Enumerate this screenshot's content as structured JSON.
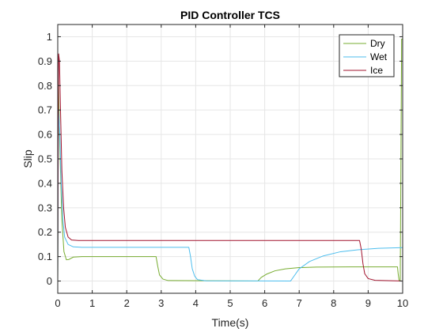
{
  "chart_data": {
    "type": "line",
    "title": "PID Controller TCS",
    "xlabel": "Time(s)",
    "ylabel": "Slip",
    "xlim": [
      0,
      10
    ],
    "ylim": [
      -0.05,
      1.05
    ],
    "xticks": [
      0,
      1,
      2,
      3,
      4,
      5,
      6,
      7,
      8,
      9,
      10
    ],
    "yticks": [
      0,
      0.1,
      0.2,
      0.3,
      0.4,
      0.5,
      0.6,
      0.7,
      0.8,
      0.9,
      1
    ],
    "xtick_labels": [
      "0",
      "1",
      "2",
      "3",
      "4",
      "5",
      "6",
      "7",
      "8",
      "9",
      "10"
    ],
    "ytick_labels": [
      "0",
      "0.1",
      "0.2",
      "0.3",
      "0.4",
      "0.5",
      "0.6",
      "0.7",
      "0.8",
      "0.9",
      "1"
    ],
    "grid": true,
    "legend_position": "top-right",
    "series": [
      {
        "name": "Dry",
        "color": "#77ac30",
        "points": [
          [
            0,
            0.0
          ],
          [
            0.02,
            0.82
          ],
          [
            0.06,
            0.55
          ],
          [
            0.12,
            0.25
          ],
          [
            0.18,
            0.12
          ],
          [
            0.25,
            0.087
          ],
          [
            0.32,
            0.088
          ],
          [
            0.45,
            0.098
          ],
          [
            0.7,
            0.1
          ],
          [
            2.85,
            0.1
          ],
          [
            2.9,
            0.06
          ],
          [
            2.95,
            0.025
          ],
          [
            3.05,
            0.008
          ],
          [
            3.2,
            0.002
          ],
          [
            5.8,
            0.0
          ],
          [
            5.9,
            0.015
          ],
          [
            6.05,
            0.028
          ],
          [
            6.3,
            0.042
          ],
          [
            6.6,
            0.05
          ],
          [
            7.0,
            0.055
          ],
          [
            7.5,
            0.057
          ],
          [
            8.5,
            0.058
          ],
          [
            9.85,
            0.058
          ],
          [
            9.87,
            0.03
          ],
          [
            9.9,
            0.0
          ],
          [
            9.93,
            0.0
          ],
          [
            9.95,
            0.5
          ],
          [
            9.97,
            0.99
          ],
          [
            10.0,
            0.99
          ]
        ]
      },
      {
        "name": "Wet",
        "color": "#4dbeee",
        "points": [
          [
            0,
            0.0
          ],
          [
            0.02,
            0.7
          ],
          [
            0.06,
            0.6
          ],
          [
            0.1,
            0.4
          ],
          [
            0.15,
            0.25
          ],
          [
            0.2,
            0.18
          ],
          [
            0.3,
            0.15
          ],
          [
            0.45,
            0.14
          ],
          [
            0.7,
            0.138
          ],
          [
            3.8,
            0.138
          ],
          [
            3.85,
            0.1
          ],
          [
            3.9,
            0.05
          ],
          [
            3.97,
            0.02
          ],
          [
            4.05,
            0.006
          ],
          [
            4.3,
            0.001
          ],
          [
            6.75,
            0.0
          ],
          [
            6.85,
            0.02
          ],
          [
            7.0,
            0.05
          ],
          [
            7.3,
            0.08
          ],
          [
            7.7,
            0.103
          ],
          [
            8.2,
            0.12
          ],
          [
            8.7,
            0.128
          ],
          [
            9.3,
            0.134
          ],
          [
            10.0,
            0.137
          ]
        ]
      },
      {
        "name": "Ice",
        "color": "#a2142f",
        "points": [
          [
            0,
            0.0
          ],
          [
            0.01,
            0.5
          ],
          [
            0.025,
            0.93
          ],
          [
            0.05,
            0.9
          ],
          [
            0.08,
            0.7
          ],
          [
            0.12,
            0.45
          ],
          [
            0.17,
            0.3
          ],
          [
            0.22,
            0.22
          ],
          [
            0.3,
            0.18
          ],
          [
            0.4,
            0.168
          ],
          [
            0.6,
            0.166
          ],
          [
            8.75,
            0.166
          ],
          [
            8.8,
            0.13
          ],
          [
            8.85,
            0.07
          ],
          [
            8.9,
            0.03
          ],
          [
            9.0,
            0.01
          ],
          [
            9.2,
            0.003
          ],
          [
            10.0,
            0.0
          ]
        ]
      }
    ]
  }
}
